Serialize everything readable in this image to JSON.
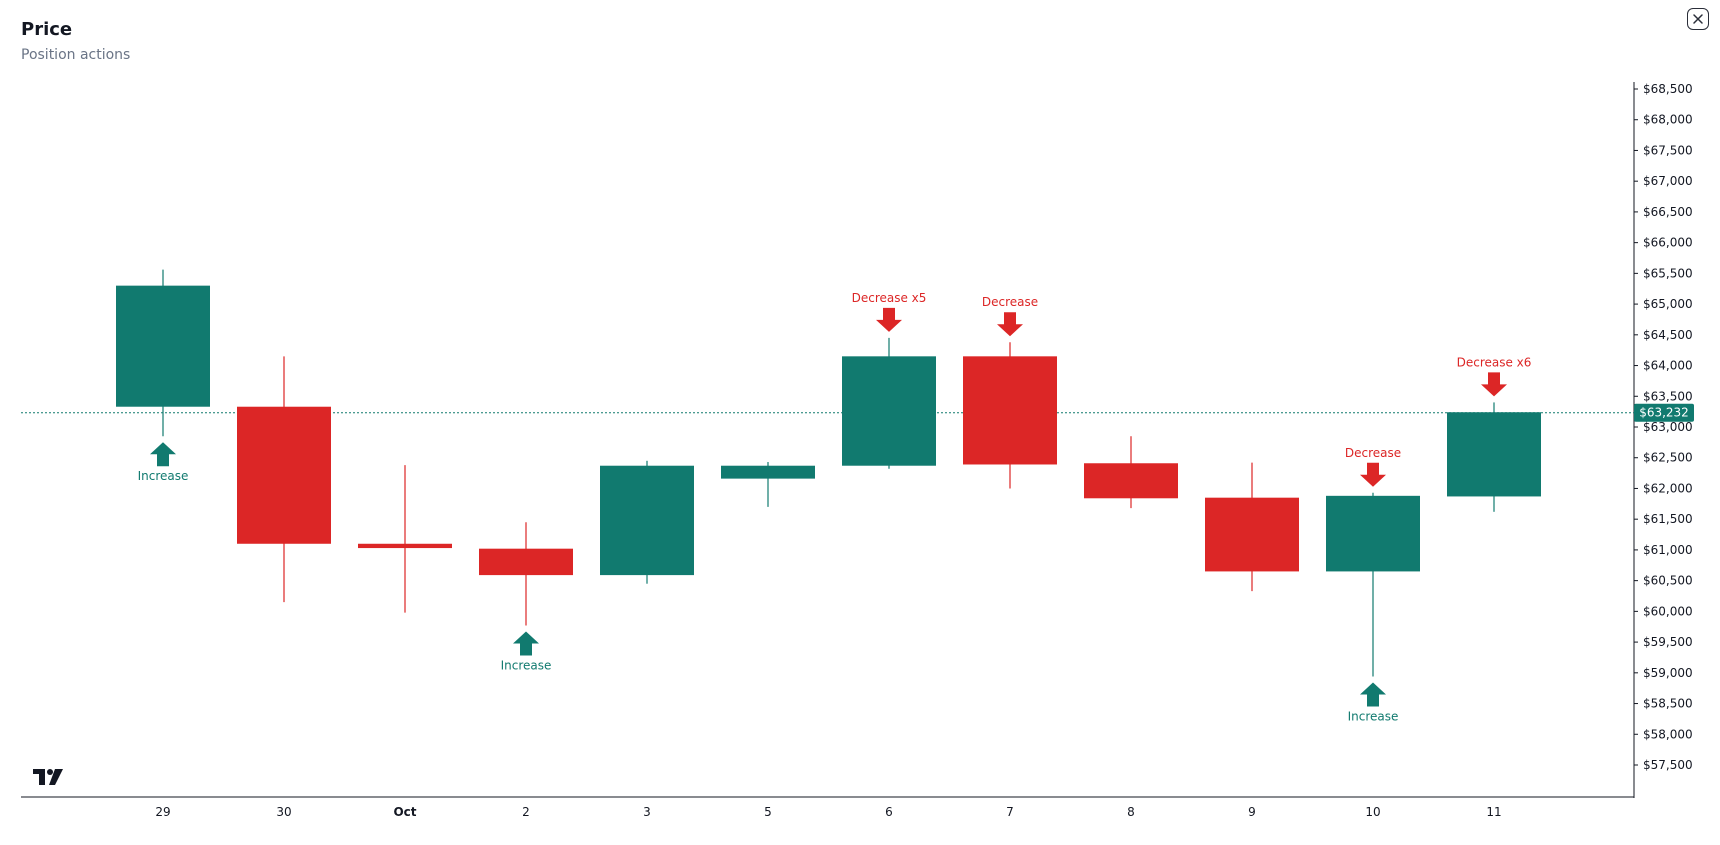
{
  "header": {
    "title": "Price",
    "subtitle": "Position actions"
  },
  "close_icon": "close-icon",
  "logo_icon": "tradingview-logo",
  "colors": {
    "up": "#117a6f",
    "down": "#dc2626",
    "axis": "#131722",
    "price_line": "#117a6f"
  },
  "chart_data": {
    "type": "candlestick",
    "title": "Price",
    "subtitle": "Position actions",
    "y_axis": {
      "min": 57500,
      "max": 68500,
      "step": 500,
      "position": "right",
      "prefix": "$",
      "ticks": [
        "$68,500",
        "$68,000",
        "$67,500",
        "$67,000",
        "$66,500",
        "$66,000",
        "$65,500",
        "$65,000",
        "$64,500",
        "$64,000",
        "$63,500",
        "$63,000",
        "$62,500",
        "$62,000",
        "$61,500",
        "$61,000",
        "$60,500",
        "$60,000",
        "$59,500",
        "$59,000",
        "$58,500",
        "$58,000",
        "$57,500"
      ]
    },
    "current_price": {
      "value": 63232,
      "label": "$63,232"
    },
    "candles": [
      {
        "label": "29",
        "bold": false,
        "open": 63330,
        "high": 65560,
        "low": 62850,
        "close": 65300
      },
      {
        "label": "30",
        "bold": false,
        "open": 63330,
        "high": 64150,
        "low": 60150,
        "close": 61100
      },
      {
        "label": "Oct",
        "bold": true,
        "open": 61100,
        "high": 62380,
        "low": 59980,
        "close": 61030
      },
      {
        "label": "2",
        "bold": false,
        "open": 61020,
        "high": 61450,
        "low": 59770,
        "close": 60590
      },
      {
        "label": "3",
        "bold": false,
        "open": 60590,
        "high": 62450,
        "low": 60450,
        "close": 62370
      },
      {
        "label": "5",
        "bold": false,
        "open": 62160,
        "high": 62430,
        "low": 61700,
        "close": 62370
      },
      {
        "label": "6",
        "bold": false,
        "open": 62370,
        "high": 64450,
        "low": 62320,
        "close": 64150
      },
      {
        "label": "7",
        "bold": false,
        "open": 64150,
        "high": 64380,
        "low": 62000,
        "close": 62390
      },
      {
        "label": "8",
        "bold": false,
        "open": 62410,
        "high": 62850,
        "low": 61680,
        "close": 61840
      },
      {
        "label": "9",
        "bold": false,
        "open": 61850,
        "high": 62420,
        "low": 60330,
        "close": 60650
      },
      {
        "label": "10",
        "bold": false,
        "open": 60650,
        "high": 61930,
        "low": 58940,
        "close": 61880
      },
      {
        "label": "11",
        "bold": false,
        "open": 61870,
        "high": 63400,
        "low": 61620,
        "close": 63240
      }
    ],
    "markers": [
      {
        "index": 0,
        "type": "increase",
        "label": "Increase"
      },
      {
        "index": 3,
        "type": "increase",
        "label": "Increase"
      },
      {
        "index": 6,
        "type": "decrease",
        "label": "Decrease x5"
      },
      {
        "index": 7,
        "type": "decrease",
        "label": "Decrease"
      },
      {
        "index": 10,
        "type": "decrease",
        "label": "Decrease"
      },
      {
        "index": 10,
        "type": "increase",
        "label": "Increase"
      },
      {
        "index": 11,
        "type": "decrease",
        "label": "Decrease x6"
      }
    ]
  }
}
